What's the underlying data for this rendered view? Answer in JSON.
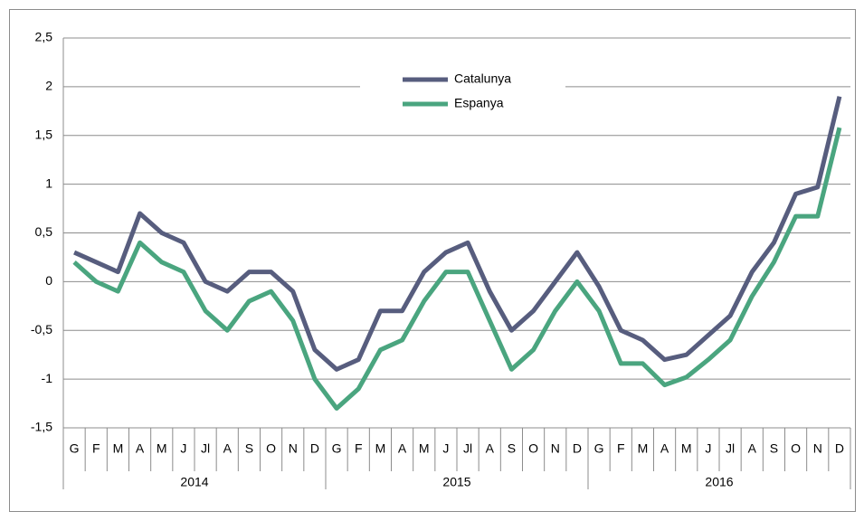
{
  "chart_data": {
    "type": "line",
    "categories": [
      "G",
      "F",
      "M",
      "A",
      "M",
      "J",
      "Jl",
      "A",
      "S",
      "O",
      "N",
      "D",
      "G",
      "F",
      "M",
      "A",
      "M",
      "J",
      "Jl",
      "A",
      "S",
      "O",
      "N",
      "D",
      "G",
      "F",
      "M",
      "A",
      "M",
      "J",
      "Jl",
      "A",
      "S",
      "O",
      "N",
      "D"
    ],
    "years": [
      "2014",
      "2015",
      "2016"
    ],
    "series": [
      {
        "name": "Catalunya",
        "color": "#575d7e",
        "values": [
          0.3,
          0.2,
          0.1,
          0.7,
          0.5,
          0.4,
          0.0,
          -0.1,
          0.1,
          0.1,
          -0.1,
          -0.7,
          -0.9,
          -0.8,
          -0.3,
          -0.3,
          0.1,
          0.3,
          0.4,
          -0.1,
          -0.5,
          -0.3,
          0.0,
          0.3,
          -0.05,
          -0.5,
          -0.6,
          -0.8,
          -0.75,
          -0.55,
          -0.35,
          0.1,
          0.4,
          0.9,
          0.97,
          1.9
        ]
      },
      {
        "name": "Espanya",
        "color": "#4aa57f",
        "values": [
          0.2,
          0.0,
          -0.1,
          0.4,
          0.2,
          0.1,
          -0.3,
          -0.5,
          -0.2,
          -0.1,
          -0.4,
          -1.0,
          -1.3,
          -1.1,
          -0.7,
          -0.6,
          -0.2,
          0.1,
          0.1,
          -0.4,
          -0.9,
          -0.7,
          -0.3,
          0.0,
          -0.3,
          -0.84,
          -0.84,
          -1.06,
          -0.98,
          -0.8,
          -0.6,
          -0.15,
          0.2,
          0.67,
          0.67,
          1.58
        ]
      }
    ],
    "ylim": [
      -1.5,
      2.5
    ],
    "yticks": [
      {
        "value": -1.5,
        "label": "-1,5"
      },
      -1,
      {
        "value": -0.5,
        "label": "-0,5"
      },
      0,
      {
        "value": 0.5,
        "label": "0,5"
      },
      1,
      {
        "value": 1.5,
        "label": "1,5"
      },
      2,
      {
        "value": 2.5,
        "label": "2,5"
      }
    ],
    "grid": true,
    "legend": "top"
  }
}
